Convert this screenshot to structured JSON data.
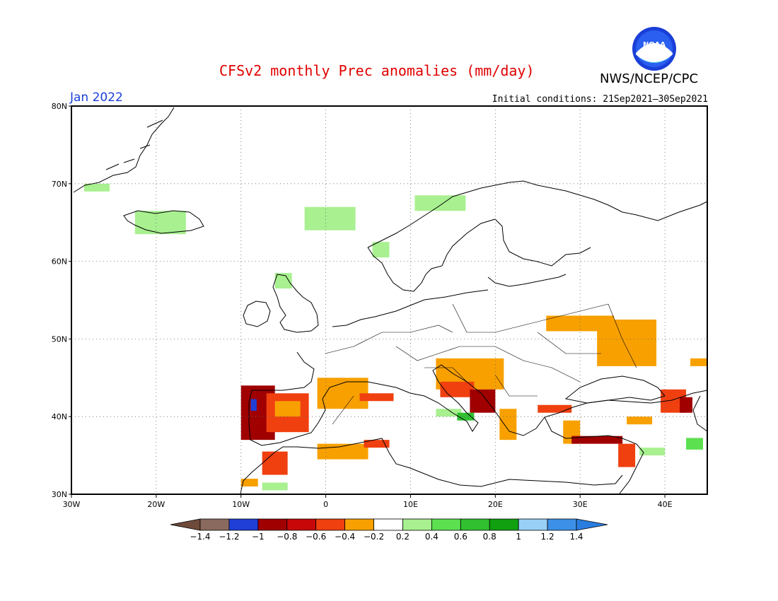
{
  "header": {
    "title": "CFSv2 monthly Prec anomalies (mm/day)",
    "agency": "NWS/NCEP/CPC",
    "logo_text": "NOAA",
    "month": "Jan 2022",
    "initial_conditions": "Initial conditions: 21Sep2021–30Sep2021"
  },
  "map": {
    "lon_labels": [
      "30W",
      "20W",
      "10W",
      "0",
      "10E",
      "20E",
      "30E",
      "40E"
    ],
    "lat_labels": [
      "80N",
      "70N",
      "60N",
      "50N",
      "40N",
      "30N"
    ],
    "extent": {
      "lon_min": -30,
      "lon_max": 45,
      "lat_min": 30,
      "lat_max": 80
    },
    "grid": "dotted"
  },
  "colorbar": {
    "labels": [
      "-1.4",
      "-1.2",
      "-1",
      "-0.8",
      "-0.6",
      "-0.4",
      "-0.2",
      "0.2",
      "0.4",
      "0.6",
      "0.8",
      "1",
      "1.2",
      "1.4"
    ],
    "colors": [
      "#8a6a5e",
      "#1f3fd6",
      "#a00000",
      "#c80808",
      "#f04010",
      "#f8a000",
      "#ffffff",
      "#a8f090",
      "#5ce050",
      "#30c030",
      "#10a010",
      "#98d0f8",
      "#3c90e8"
    ],
    "end_low_color": "#6e4a3a",
    "end_high_color": "#2a7de0"
  },
  "anomaly_regions": [
    {
      "category": "-0.8",
      "color": "#a00000",
      "lon": -8,
      "lat": 40.5,
      "lon_span": 4,
      "lat_span": 7
    },
    {
      "category": "-1.2",
      "color": "#1f3fd6",
      "lon": -8.5,
      "lat": 41.5,
      "lon_span": 0.7,
      "lat_span": 1.5
    },
    {
      "category": "-0.6",
      "color": "#f04010",
      "lon": -4.5,
      "lat": 40.5,
      "lon_span": 5,
      "lat_span": 5
    },
    {
      "category": "-0.4",
      "color": "#f8a000",
      "lon": -4.5,
      "lat": 41,
      "lon_span": 3,
      "lat_span": 2
    },
    {
      "category": "-0.4",
      "color": "#f8a000",
      "lon": 2,
      "lat": 43,
      "lon_span": 6,
      "lat_span": 4
    },
    {
      "category": "-0.6",
      "color": "#f04010",
      "lon": 6,
      "lat": 42.5,
      "lon_span": 4,
      "lat_span": 1
    },
    {
      "category": "-0.6",
      "color": "#f04010",
      "lon": -6,
      "lat": 34,
      "lon_span": 3,
      "lat_span": 3
    },
    {
      "category": "-0.4",
      "color": "#f8a000",
      "lon": -9,
      "lat": 31.5,
      "lon_span": 2,
      "lat_span": 1
    },
    {
      "category": "-0.4",
      "color": "#f8a000",
      "lon": 2,
      "lat": 35.5,
      "lon_span": 6,
      "lat_span": 2
    },
    {
      "category": "-0.6",
      "color": "#f04010",
      "lon": 6,
      "lat": 36.5,
      "lon_span": 3,
      "lat_span": 1
    },
    {
      "category": "-0.4",
      "color": "#f8a000",
      "lon": 17,
      "lat": 45.5,
      "lon_span": 8,
      "lat_span": 4
    },
    {
      "category": "-0.6",
      "color": "#f04010",
      "lon": 15.5,
      "lat": 43.5,
      "lon_span": 4,
      "lat_span": 2
    },
    {
      "category": "-0.8",
      "color": "#a00000",
      "lon": 18.5,
      "lat": 42,
      "lon_span": 3,
      "lat_span": 3
    },
    {
      "category": "-0.4",
      "color": "#f8a000",
      "lon": 21.5,
      "lat": 39,
      "lon_span": 2,
      "lat_span": 4
    },
    {
      "category": "-0.6",
      "color": "#f04010",
      "lon": 27,
      "lat": 41,
      "lon_span": 4,
      "lat_span": 1
    },
    {
      "category": "-0.4",
      "color": "#f8a000",
      "lon": 29,
      "lat": 38,
      "lon_span": 2,
      "lat_span": 3
    },
    {
      "category": "-0.8",
      "color": "#a00000",
      "lon": 32,
      "lat": 37,
      "lon_span": 6,
      "lat_span": 1
    },
    {
      "category": "-0.6",
      "color": "#f04010",
      "lon": 35.5,
      "lat": 35,
      "lon_span": 2,
      "lat_span": 3
    },
    {
      "category": "-0.4",
      "color": "#f8a000",
      "lon": 30,
      "lat": 52,
      "lon_span": 8,
      "lat_span": 2
    },
    {
      "category": "-0.4",
      "color": "#f8a000",
      "lon": 35.5,
      "lat": 49.5,
      "lon_span": 7,
      "lat_span": 6
    },
    {
      "category": "-0.4",
      "color": "#f8a000",
      "lon": 37,
      "lat": 39.5,
      "lon_span": 3,
      "lat_span": 1
    },
    {
      "category": "-0.6",
      "color": "#f04010",
      "lon": 41,
      "lat": 42,
      "lon_span": 3,
      "lat_span": 3
    },
    {
      "category": "-0.8",
      "color": "#a00000",
      "lon": 42.5,
      "lat": 41.5,
      "lon_span": 1.5,
      "lat_span": 2
    },
    {
      "category": "-0.4",
      "color": "#f8a000",
      "lon": 44,
      "lat": 47,
      "lon_span": 2,
      "lat_span": 1
    },
    {
      "category": "0.2",
      "color": "#a8f090",
      "lon": 0.5,
      "lat": 65.5,
      "lon_span": 6,
      "lat_span": 3
    },
    {
      "category": "0.2",
      "color": "#a8f090",
      "lon": -27,
      "lat": 69.5,
      "lon_span": 3,
      "lat_span": 1
    },
    {
      "category": "0.2",
      "color": "#a8f090",
      "lon": -19.5,
      "lat": 65,
      "lon_span": 6,
      "lat_span": 3
    },
    {
      "category": "0.2",
      "color": "#a8f090",
      "lon": 13.5,
      "lat": 67.5,
      "lon_span": 6,
      "lat_span": 2
    },
    {
      "category": "0.2",
      "color": "#a8f090",
      "lon": 6.5,
      "lat": 61.5,
      "lon_span": 2,
      "lat_span": 2
    },
    {
      "category": "0.2",
      "color": "#a8f090",
      "lon": -5,
      "lat": 57.5,
      "lon_span": 2,
      "lat_span": 2
    },
    {
      "category": "0.2",
      "color": "#a8f090",
      "lon": 14.5,
      "lat": 40.5,
      "lon_span": 3,
      "lat_span": 1
    },
    {
      "category": "0.6",
      "color": "#30c030",
      "lon": 16.5,
      "lat": 40,
      "lon_span": 2,
      "lat_span": 1
    },
    {
      "category": "0.2",
      "color": "#a8f090",
      "lon": 38.5,
      "lat": 35.5,
      "lon_span": 3,
      "lat_span": 1
    },
    {
      "category": "0.4",
      "color": "#5ce050",
      "lon": 43.5,
      "lat": 36.5,
      "lon_span": 2,
      "lat_span": 1.5
    },
    {
      "category": "0.2",
      "color": "#a8f090",
      "lon": -6,
      "lat": 31,
      "lon_span": 3,
      "lat_span": 1
    }
  ]
}
